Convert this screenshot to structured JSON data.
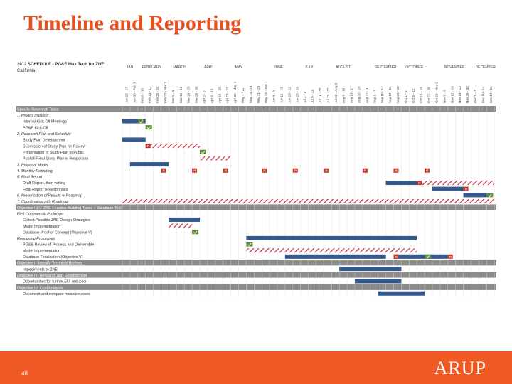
{
  "slide": {
    "title": "Timeline and Reporting",
    "page_number": "48",
    "brand": "ARUP"
  },
  "schedule": {
    "heading_line1": "2012 SCHEDULE - PG&E Max Tech for ZNE",
    "heading_line2": "California",
    "months": [
      "JAN",
      "FEBRUARY",
      "MARCH",
      "APRIL",
      "MAY",
      "JUNE",
      "JULY",
      "AUGUST",
      "SEPTEMBER",
      "OCTOBER",
      "NOVEMBER",
      "DECEMBER"
    ],
    "weeks": [
      "Jan 23 - 27",
      "Jan 30 - Feb 3",
      "Feb 6 - 10",
      "Feb 13 - 17",
      "Feb 20 - 24",
      "Feb 27 - Mar 2",
      "Mar 5 - 9",
      "Mar 12 - 16",
      "Mar 19 - 23",
      "Mar 26 - 30",
      "Apr 2 - 6",
      "Apr 9 - 13",
      "Apr 16 - 20",
      "Apr 23 - 27",
      "Apr 30 - May 4",
      "May 7 - 11",
      "May 14 - 18",
      "May 21 - 25",
      "May 28 - Jun 1",
      "Jun 4 - 8",
      "Jun 11 - 15",
      "Jun 18 - 22",
      "Jun 25 - 29",
      "Jul 2 - 6",
      "Jul 9 - 13",
      "Jul 16 - 20",
      "Jul 23 - 27",
      "Jul 30 - Aug 3",
      "Aug 6 - 10",
      "Aug 13 - 17",
      "Aug 20 - 24",
      "Aug 27 - 31",
      "Sep 3 - 7",
      "Sep 10 - 14",
      "Sep 17 - 21",
      "Sep 24 - 28",
      "Oct 1 - 5",
      "Oct 8 - 12",
      "Oct 15 - 19",
      "Oct 22 - 26",
      "Oct 29 - Nov 2",
      "Nov 5 - 9",
      "Nov 12 - 16",
      "Nov 19 - 23",
      "Nov 26 - 30",
      "Dec 3 - 7",
      "Dec 10 - 14",
      "Dec 17 - 21"
    ],
    "milestone_r": "R",
    "rows": [
      {
        "label": "Specific Research Tasks",
        "kind": "header"
      },
      {
        "label": "1. Project Initiation",
        "kind": "section"
      },
      {
        "label": "Internal Kick-Off Meetings",
        "kind": "task",
        "bars": [
          {
            "s": 0,
            "e": 3,
            "t": "solid"
          }
        ],
        "marks": [
          {
            "w": 2,
            "t": "check"
          }
        ]
      },
      {
        "label": "PG&E Kick-Off",
        "kind": "task",
        "marks": [
          {
            "w": 3,
            "t": "check"
          }
        ]
      },
      {
        "label": "2. Research Plan and Schedule",
        "kind": "section"
      },
      {
        "label": "Study Plan Development",
        "kind": "task",
        "bars": [
          {
            "s": 0,
            "e": 3,
            "t": "solid"
          }
        ]
      },
      {
        "label": "Submission of Study Plan for Review",
        "kind": "task",
        "bars": [
          {
            "s": 3,
            "e": 10,
            "t": "hatch"
          }
        ],
        "marks": [
          {
            "w": 3,
            "t": "R"
          }
        ]
      },
      {
        "label": "Presentation of Study Plan to Public",
        "kind": "task",
        "marks": [
          {
            "w": 10,
            "t": "check"
          }
        ]
      },
      {
        "label": "Publish Final Study Plan w Responses",
        "kind": "task",
        "bars": [
          {
            "s": 10,
            "e": 14,
            "t": "hatch"
          }
        ]
      },
      {
        "label": "3. Proposal Model",
        "kind": "section",
        "bars": [
          {
            "s": 1,
            "e": 6,
            "t": "solid"
          }
        ]
      },
      {
        "label": "4. Monthly Reporting",
        "kind": "section",
        "marks": [
          {
            "w": 5,
            "t": "R"
          },
          {
            "w": 9,
            "t": "R"
          },
          {
            "w": 13,
            "t": "R"
          },
          {
            "w": 18,
            "t": "R"
          },
          {
            "w": 22,
            "t": "R"
          },
          {
            "w": 26,
            "t": "R"
          },
          {
            "w": 31,
            "t": "R"
          },
          {
            "w": 35,
            "t": "R"
          },
          {
            "w": 39,
            "t": "R"
          }
        ]
      },
      {
        "label": "5. Final Report",
        "kind": "section"
      },
      {
        "label": "Draft Report, then vetting",
        "kind": "task",
        "bars": [
          {
            "s": 34,
            "e": 38,
            "t": "solid"
          },
          {
            "s": 38,
            "e": 48,
            "t": "hatch"
          }
        ],
        "marks": [
          {
            "w": 38,
            "t": "R"
          }
        ]
      },
      {
        "label": "Final Report w Responses",
        "kind": "task",
        "bars": [
          {
            "s": 40,
            "e": 44,
            "t": "solid"
          }
        ],
        "marks": [
          {
            "w": 44,
            "t": "R"
          }
        ]
      },
      {
        "label": "6. Presentation of Results w Roadmap",
        "kind": "section",
        "bars": [
          {
            "s": 44,
            "e": 47,
            "t": "solid"
          }
        ],
        "marks": [
          {
            "w": 47,
            "t": "check"
          }
        ]
      },
      {
        "label": "7. Coordination with Roadmap",
        "kind": "section",
        "bars": [
          {
            "s": 0,
            "e": 48,
            "t": "hatch"
          }
        ]
      },
      {
        "label": "Objective I &V: ZNE Feasible Building Types + Database Tool",
        "kind": "objective"
      },
      {
        "label": "First Commercial Prototype",
        "kind": "section"
      },
      {
        "label": "Collect Possible ZNE Design Strategies",
        "kind": "task",
        "bars": [
          {
            "s": 6,
            "e": 10,
            "t": "solid"
          }
        ]
      },
      {
        "label": "Model Implementation",
        "kind": "task",
        "bars": [
          {
            "s": 6,
            "e": 9,
            "t": "hatch"
          }
        ]
      },
      {
        "label": "Database Proof of Concept (Objective V)",
        "kind": "task",
        "marks": [
          {
            "w": 9,
            "t": "check"
          }
        ]
      },
      {
        "label": "Remaining Prototypes",
        "kind": "section",
        "bars": [
          {
            "s": 16,
            "e": 38,
            "t": "solid"
          }
        ]
      },
      {
        "label": "PG&E Review of Process and Deliverable",
        "kind": "task",
        "marks": [
          {
            "w": 16,
            "t": "check"
          }
        ]
      },
      {
        "label": "Model Implementation",
        "kind": "task",
        "bars": [
          {
            "s": 16,
            "e": 38,
            "t": "hatch"
          }
        ]
      },
      {
        "label": "Database Finalization (Objective V)",
        "kind": "task",
        "bars": [
          {
            "s": 21,
            "e": 34,
            "t": "solid"
          },
          {
            "s": 35,
            "e": 42,
            "t": "solid"
          }
        ],
        "marks": [
          {
            "w": 35,
            "t": "R"
          },
          {
            "w": 39,
            "t": "check"
          },
          {
            "w": 42,
            "t": "R"
          }
        ]
      },
      {
        "label": "Objective II: Identify Technical Barriers",
        "kind": "objective"
      },
      {
        "label": "Impediments to ZNE",
        "kind": "task",
        "bars": [
          {
            "s": 28,
            "e": 36,
            "t": "solid"
          }
        ]
      },
      {
        "label": "Objective III: Research and Development",
        "kind": "objective"
      },
      {
        "label": "Opportunities for further EUI reduction",
        "kind": "task",
        "bars": [
          {
            "s": 30,
            "e": 36,
            "t": "solid"
          }
        ]
      },
      {
        "label": "Objective IV: Cost Analysis",
        "kind": "objective"
      },
      {
        "label": "Document and compare measure costs",
        "kind": "task",
        "bars": [
          {
            "s": 33,
            "e": 39,
            "t": "solid"
          }
        ]
      }
    ]
  }
}
